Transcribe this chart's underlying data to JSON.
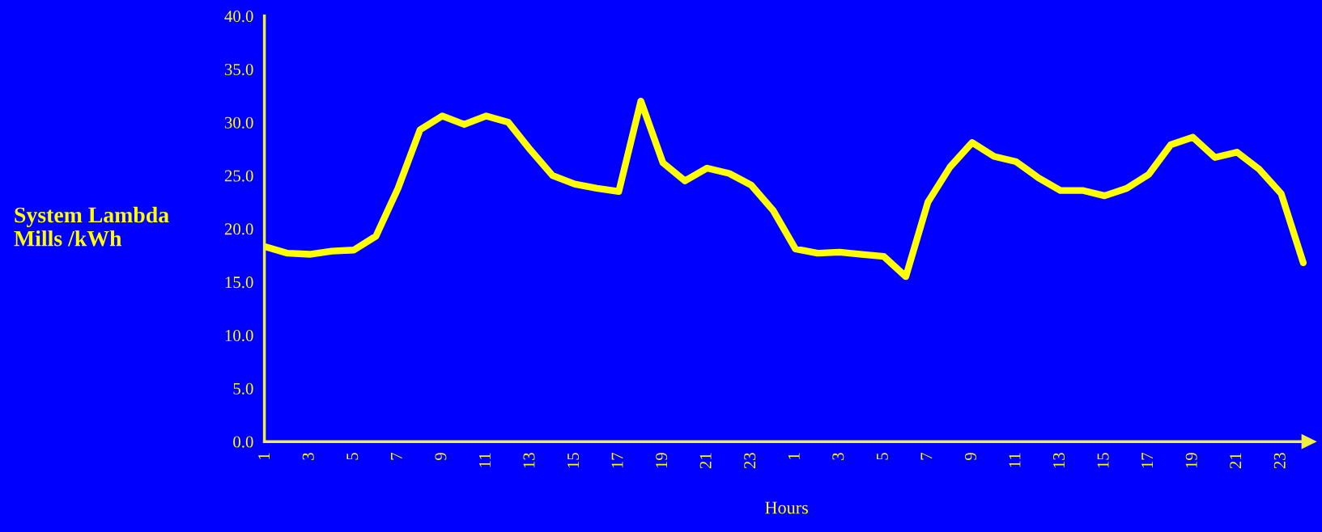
{
  "chart_data": {
    "type": "line",
    "xlabel": "Hours",
    "ylabel": "System Lambda\nMills /kWh",
    "categories": [
      "1",
      null,
      "3",
      null,
      "5",
      null,
      "7",
      null,
      "9",
      null,
      "11",
      null,
      "13",
      null,
      "15",
      null,
      "17",
      null,
      "19",
      null,
      "21",
      null,
      "23",
      null,
      "1",
      null,
      "3",
      null,
      "5",
      null,
      "7",
      null,
      "9",
      null,
      "11",
      null,
      "13",
      null,
      "15",
      null,
      "17",
      null,
      "19",
      null,
      "21",
      null,
      "23",
      null
    ],
    "series": [
      {
        "color": "#ffff00",
        "values": [
          18.3,
          17.7,
          17.6,
          17.9,
          18.0,
          19.3,
          23.8,
          29.3,
          30.6,
          29.8,
          30.6,
          30.0,
          27.4,
          25.0,
          24.2,
          23.8,
          23.5,
          32.0,
          26.2,
          24.5,
          25.7,
          25.2,
          24.1,
          21.7,
          18.1,
          17.7,
          17.8,
          17.6,
          17.4,
          15.5,
          22.5,
          25.8,
          28.1,
          26.8,
          26.3,
          24.8,
          23.6,
          23.6,
          23.1,
          23.8,
          25.1,
          27.9,
          28.6,
          26.7,
          27.2,
          25.6,
          23.3,
          16.8
        ]
      }
    ],
    "ylim": [
      0,
      40
    ],
    "yticks": [
      {
        "value": 0,
        "label": "0.0"
      },
      {
        "value": 5,
        "label": "5.0"
      },
      {
        "value": 10,
        "label": "10.0"
      },
      {
        "value": 15,
        "label": "15.0"
      },
      {
        "value": 20,
        "label": "20.0"
      },
      {
        "value": 25,
        "label": "25.0"
      },
      {
        "value": 30,
        "label": "30.0"
      },
      {
        "value": 35,
        "label": "35.0"
      },
      {
        "value": 40,
        "label": "40.0"
      }
    ],
    "grid": false,
    "legend": false,
    "marker": "none",
    "line_style": "solid"
  }
}
